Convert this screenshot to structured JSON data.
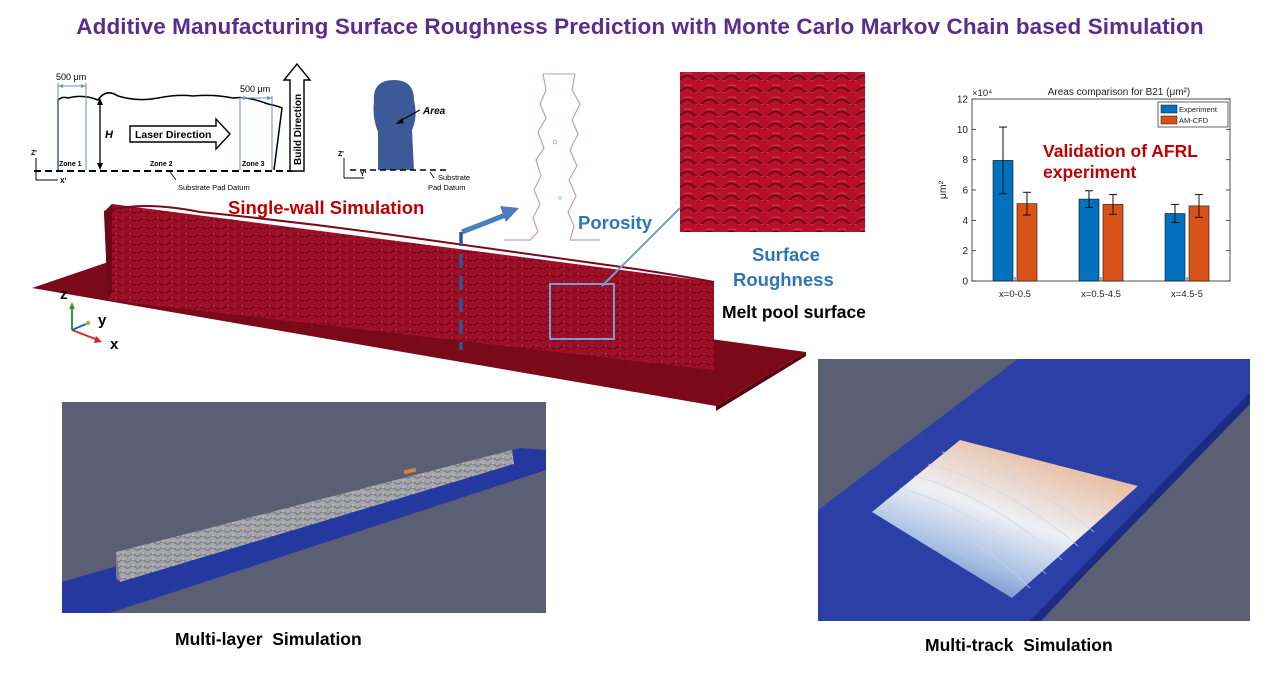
{
  "title": "Additive Manufacturing Surface Roughness Prediction with Monte Carlo Markov Chain based Simulation",
  "schematic": {
    "width_left": "500 μm",
    "width_right": "500 μm",
    "height_label": "H",
    "laser_direction": "Laser Direction",
    "build_direction": "Build Direction",
    "zone1": "Zone 1",
    "zone2": "Zone 2",
    "zone3": "Zone 3",
    "datum": "Substrate Pad Datum",
    "z_axis": "Z'",
    "x_axis": "X'",
    "area_label": "Area",
    "z_axis2": "Z'",
    "y_axis2": "Y'",
    "datum2_line1": "Substrate",
    "datum2_line2": "Pad Datum"
  },
  "labels": {
    "single_wall": "Single-wall  Simulation",
    "porosity": "Porosity",
    "surface_roughness_1": "Surface",
    "surface_roughness_2": "Roughness",
    "melt_pool": "Melt pool surface",
    "multi_layer": "Multi-layer  Simulation",
    "multi_track": "Multi-track  Simulation",
    "validation_1": "Validation of AFRL",
    "validation_2": "experiment",
    "axis_z": "z",
    "axis_y": "y",
    "axis_x": "x"
  },
  "colors": {
    "title": "#5a2d8c",
    "wall_red": "#8b0a1e",
    "experiment": "#0072bd",
    "am_cfd": "#d95319",
    "viewport_bg": "#5a5f73",
    "substrate_blue": "#2b3fa6"
  },
  "chart_data": {
    "type": "bar",
    "title": "Areas comparison for B21 (μm²)",
    "exponent": "×10⁴",
    "ylabel": "μm²",
    "categories": [
      "x=0-0.5",
      "x=0.5-4.5",
      "x=4.5-5"
    ],
    "series": [
      {
        "name": "Experiment",
        "values": [
          7.95,
          5.4,
          4.45
        ],
        "errors": [
          2.2,
          0.55,
          0.6
        ]
      },
      {
        "name": "AM-CFD",
        "values": [
          5.1,
          5.05,
          4.95
        ],
        "errors": [
          0.75,
          0.65,
          0.75
        ]
      }
    ],
    "ylim": [
      0,
      12
    ],
    "yticks": [
      0,
      2,
      4,
      6,
      8,
      10,
      12
    ],
    "legend_position": "top-right",
    "grid": false
  }
}
